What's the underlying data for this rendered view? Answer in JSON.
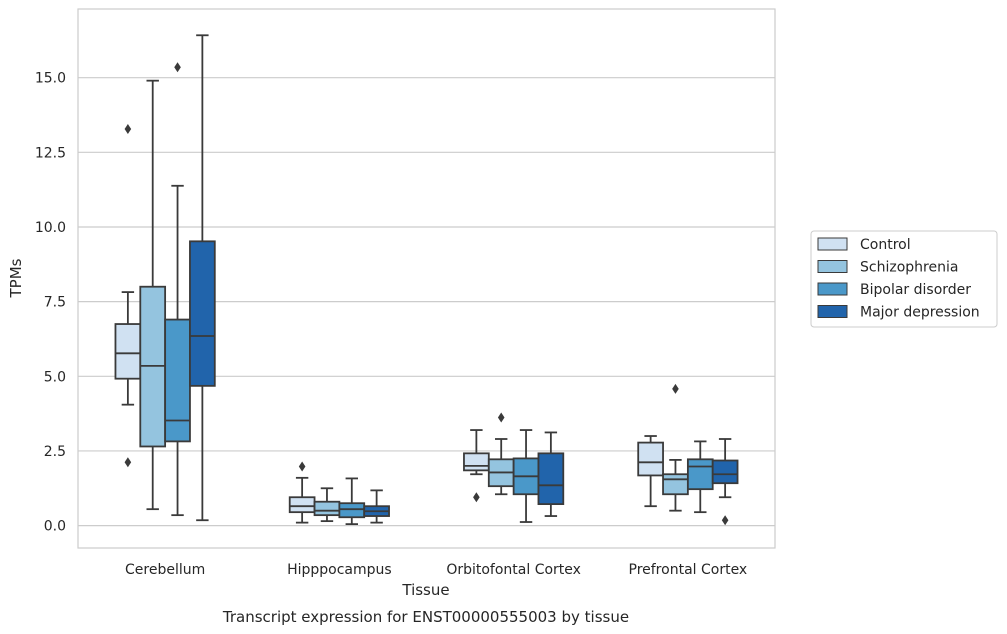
{
  "chart_data": {
    "type": "box",
    "title": "Transcript expression for ENST00000555003 by tissue",
    "xlabel": "Tissue",
    "ylabel": "TPMs",
    "ylim": [
      -0.75,
      17.3
    ],
    "yticks": [
      "0.0",
      "2.5",
      "5.0",
      "7.5",
      "10.0",
      "12.5",
      "15.0"
    ],
    "grid": "horizontal",
    "legend_position": "right",
    "categories": [
      "Cerebellum",
      "Hipppocampus",
      "Orbitofontal Cortex",
      "Prefrontal Cortex"
    ],
    "series": [
      {
        "name": "Control",
        "color": "#d0e1f2",
        "boxes": [
          {
            "whislo": 4.05,
            "q1": 4.92,
            "med": 5.77,
            "q3": 6.75,
            "whishi": 7.82,
            "fliers": [
              13.28,
              2.12
            ]
          },
          {
            "whislo": 0.1,
            "q1": 0.45,
            "med": 0.65,
            "q3": 0.95,
            "whishi": 1.6,
            "fliers": [
              1.98
            ]
          },
          {
            "whislo": 1.72,
            "q1": 1.85,
            "med": 2.0,
            "q3": 2.42,
            "whishi": 3.2,
            "fliers": [
              0.95
            ]
          },
          {
            "whislo": 0.65,
            "q1": 1.68,
            "med": 2.12,
            "q3": 2.78,
            "whishi": 3.0,
            "fliers": []
          }
        ]
      },
      {
        "name": "Schizophrenia",
        "color": "#94c4df",
        "boxes": [
          {
            "whislo": 0.55,
            "q1": 2.65,
            "med": 5.35,
            "q3": 8.0,
            "whishi": 14.9,
            "fliers": []
          },
          {
            "whislo": 0.15,
            "q1": 0.35,
            "med": 0.5,
            "q3": 0.8,
            "whishi": 1.25,
            "fliers": []
          },
          {
            "whislo": 1.05,
            "q1": 1.32,
            "med": 1.78,
            "q3": 2.22,
            "whishi": 2.9,
            "fliers": [
              3.62
            ]
          },
          {
            "whislo": 0.5,
            "q1": 1.05,
            "med": 1.55,
            "q3": 1.72,
            "whishi": 2.2,
            "fliers": [
              4.58
            ]
          }
        ]
      },
      {
        "name": "Bipolar disorder",
        "color": "#4a98c9",
        "boxes": [
          {
            "whislo": 0.35,
            "q1": 2.82,
            "med": 3.52,
            "q3": 6.9,
            "whishi": 11.38,
            "fliers": [
              15.35
            ]
          },
          {
            "whislo": 0.05,
            "q1": 0.28,
            "med": 0.55,
            "q3": 0.75,
            "whishi": 1.58,
            "fliers": []
          },
          {
            "whislo": 0.12,
            "q1": 1.05,
            "med": 1.65,
            "q3": 2.25,
            "whishi": 3.2,
            "fliers": []
          },
          {
            "whislo": 0.45,
            "q1": 1.22,
            "med": 1.98,
            "q3": 2.22,
            "whishi": 2.82,
            "fliers": []
          }
        ]
      },
      {
        "name": "Major depression",
        "color": "#2164ab",
        "boxes": [
          {
            "whislo": 0.18,
            "q1": 4.68,
            "med": 6.35,
            "q3": 9.52,
            "whishi": 16.42,
            "fliers": []
          },
          {
            "whislo": 0.1,
            "q1": 0.32,
            "med": 0.48,
            "q3": 0.65,
            "whishi": 1.18,
            "fliers": []
          },
          {
            "whislo": 0.32,
            "q1": 0.72,
            "med": 1.35,
            "q3": 2.42,
            "whishi": 3.12,
            "fliers": []
          },
          {
            "whislo": 0.95,
            "q1": 1.42,
            "med": 1.72,
            "q3": 2.18,
            "whishi": 2.9,
            "fliers": [
              0.18
            ]
          }
        ]
      }
    ]
  }
}
